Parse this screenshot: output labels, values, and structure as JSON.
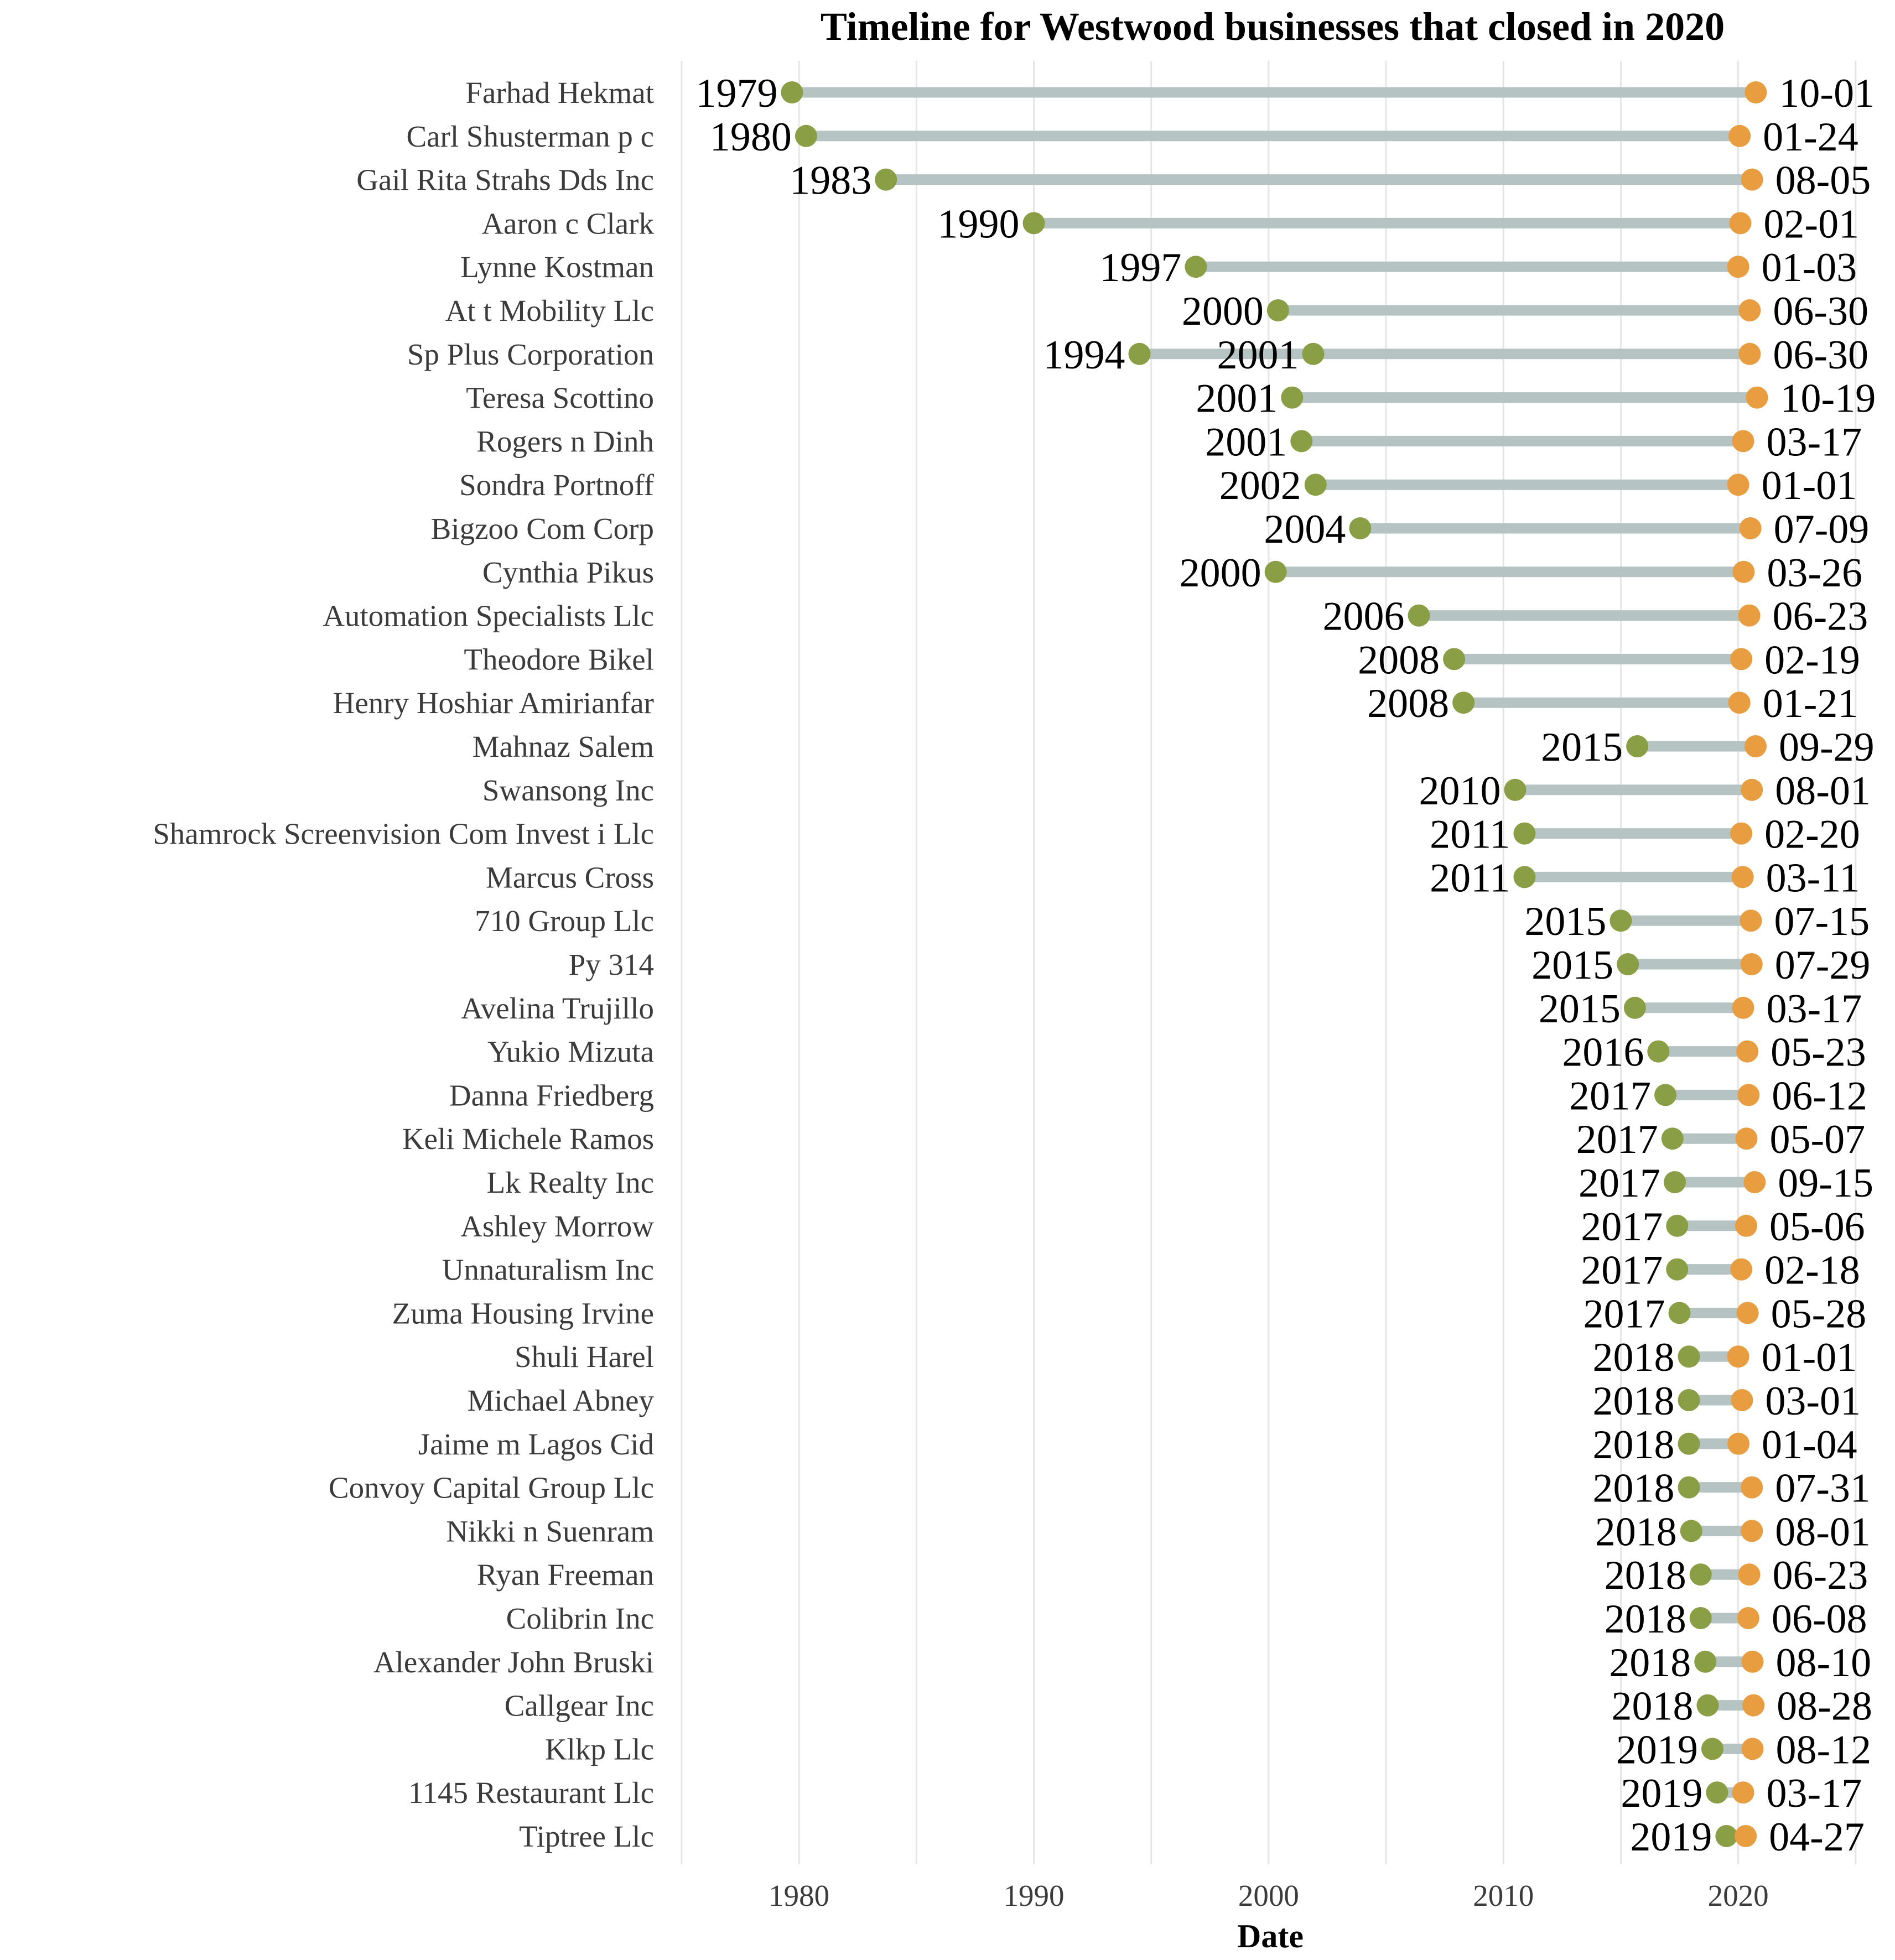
{
  "chart_data": {
    "type": "dumbbell",
    "title": "Timeline for Westwood businesses that closed in 2020",
    "xlabel": "Date",
    "ylabel": "",
    "xlim": [
      1975,
      2025.5
    ],
    "xticks": [
      1980,
      1990,
      2000,
      2010,
      2020
    ],
    "grid": "vertical",
    "legend": "none",
    "colors": {
      "start": "#8a9f45",
      "end": "#e89d40",
      "segment": "#b5c3c3",
      "grid": "#e6e6e6"
    },
    "rows": [
      {
        "name": "Farhad Hekmat",
        "start": 1979.7,
        "start_label": "1979",
        "end": 2020.75,
        "end_label": "10-01"
      },
      {
        "name": "Carl Shusterman p c",
        "start": 1980.3,
        "start_label": "1980",
        "end": 2020.06,
        "end_label": "01-24"
      },
      {
        "name": "Gail Rita Strahs Dds Inc",
        "start": 1983.7,
        "start_label": "1983",
        "end": 2020.59,
        "end_label": "08-05"
      },
      {
        "name": "Aaron c Clark",
        "start": 1990.0,
        "start_label": "1990",
        "end": 2020.09,
        "end_label": "02-01"
      },
      {
        "name": "Lynne Kostman",
        "start": 1996.9,
        "start_label": "1997",
        "end": 2020.0,
        "end_label": "01-03"
      },
      {
        "name": "At t Mobility Llc",
        "start": 2000.4,
        "start_label": "2000",
        "end": 2020.49,
        "end_label": "06-30"
      },
      {
        "name": "Sp Plus Corporation",
        "start": 1994.5,
        "start_label": "1994",
        "start2": 2001.9,
        "start2_label": "2001",
        "end": 2020.49,
        "end_label": "06-30"
      },
      {
        "name": "Teresa Scottino",
        "start": 2001.0,
        "start_label": "2001",
        "end": 2020.8,
        "end_label": "10-19"
      },
      {
        "name": "Rogers n Dinh",
        "start": 2001.4,
        "start_label": "2001",
        "end": 2020.21,
        "end_label": "03-17"
      },
      {
        "name": "Sondra Portnoff",
        "start": 2002.0,
        "start_label": "2002",
        "end": 2020.0,
        "end_label": "01-01"
      },
      {
        "name": "Bigzoo Com Corp",
        "start": 2003.9,
        "start_label": "2004",
        "end": 2020.52,
        "end_label": "07-09"
      },
      {
        "name": "Cynthia Pikus",
        "start": 2000.3,
        "start_label": "2000",
        "end": 2020.23,
        "end_label": "03-26"
      },
      {
        "name": "Automation Specialists Llc",
        "start": 2006.4,
        "start_label": "2006",
        "end": 2020.47,
        "end_label": "06-23"
      },
      {
        "name": "Theodore Bikel",
        "start": 2007.9,
        "start_label": "2008",
        "end": 2020.13,
        "end_label": "02-19"
      },
      {
        "name": "Henry Hoshiar Amirianfar",
        "start": 2008.3,
        "start_label": "2008",
        "end": 2020.05,
        "end_label": "01-21"
      },
      {
        "name": "Mahnaz Salem",
        "start": 2015.7,
        "start_label": "2015",
        "end": 2020.74,
        "end_label": "09-29"
      },
      {
        "name": "Swansong Inc",
        "start": 2010.5,
        "start_label": "2010",
        "end": 2020.58,
        "end_label": "08-01"
      },
      {
        "name": "Shamrock Screenvision Com Invest i Llc",
        "start": 2010.9,
        "start_label": "2011",
        "end": 2020.13,
        "end_label": "02-20"
      },
      {
        "name": "Marcus Cross",
        "start": 2010.9,
        "start_label": "2011",
        "end": 2020.19,
        "end_label": "03-11"
      },
      {
        "name": "710 Group Llc",
        "start": 2015.0,
        "start_label": "2015",
        "end": 2020.54,
        "end_label": "07-15"
      },
      {
        "name": "Py 314",
        "start": 2015.3,
        "start_label": "2015",
        "end": 2020.57,
        "end_label": "07-29"
      },
      {
        "name": "Avelina Trujillo",
        "start": 2015.6,
        "start_label": "2015",
        "end": 2020.21,
        "end_label": "03-17"
      },
      {
        "name": "Yukio Mizuta",
        "start": 2016.6,
        "start_label": "2016",
        "end": 2020.39,
        "end_label": "05-23"
      },
      {
        "name": "Danna Friedberg",
        "start": 2016.9,
        "start_label": "2017",
        "end": 2020.44,
        "end_label": "06-12"
      },
      {
        "name": "Keli Michele Ramos",
        "start": 2017.2,
        "start_label": "2017",
        "end": 2020.35,
        "end_label": "05-07"
      },
      {
        "name": "Lk Realty Inc",
        "start": 2017.3,
        "start_label": "2017",
        "end": 2020.7,
        "end_label": "09-15"
      },
      {
        "name": "Ashley Morrow",
        "start": 2017.4,
        "start_label": "2017",
        "end": 2020.34,
        "end_label": "05-06"
      },
      {
        "name": "Unnaturalism Inc",
        "start": 2017.4,
        "start_label": "2017",
        "end": 2020.13,
        "end_label": "02-18"
      },
      {
        "name": "Zuma Housing Irvine",
        "start": 2017.5,
        "start_label": "2017",
        "end": 2020.4,
        "end_label": "05-28"
      },
      {
        "name": "Shuli Harel",
        "start": 2017.9,
        "start_label": "2018",
        "end": 2020.0,
        "end_label": "01-01"
      },
      {
        "name": "Michael Abney",
        "start": 2017.9,
        "start_label": "2018",
        "end": 2020.16,
        "end_label": "03-01"
      },
      {
        "name": "Jaime m Lagos Cid",
        "start": 2017.9,
        "start_label": "2018",
        "end": 2020.01,
        "end_label": "01-04"
      },
      {
        "name": "Convoy Capital Group Llc",
        "start": 2017.9,
        "start_label": "2018",
        "end": 2020.58,
        "end_label": "07-31"
      },
      {
        "name": "Nikki n Suenram",
        "start": 2018.0,
        "start_label": "2018",
        "end": 2020.58,
        "end_label": "08-01"
      },
      {
        "name": "Ryan Freeman",
        "start": 2018.4,
        "start_label": "2018",
        "end": 2020.47,
        "end_label": "06-23"
      },
      {
        "name": "Colibrin Inc",
        "start": 2018.4,
        "start_label": "2018",
        "end": 2020.43,
        "end_label": "06-08"
      },
      {
        "name": "Alexander John Bruski",
        "start": 2018.6,
        "start_label": "2018",
        "end": 2020.61,
        "end_label": "08-10"
      },
      {
        "name": "Callgear Inc",
        "start": 2018.7,
        "start_label": "2018",
        "end": 2020.65,
        "end_label": "08-28"
      },
      {
        "name": "Klkp Llc",
        "start": 2018.9,
        "start_label": "2019",
        "end": 2020.61,
        "end_label": "08-12"
      },
      {
        "name": "1145 Restaurant Llc",
        "start": 2019.1,
        "start_label": "2019",
        "end": 2020.21,
        "end_label": "03-17"
      },
      {
        "name": "Tiptree Llc",
        "start": 2019.5,
        "start_label": "2019",
        "end": 2020.32,
        "end_label": "04-27"
      }
    ]
  }
}
